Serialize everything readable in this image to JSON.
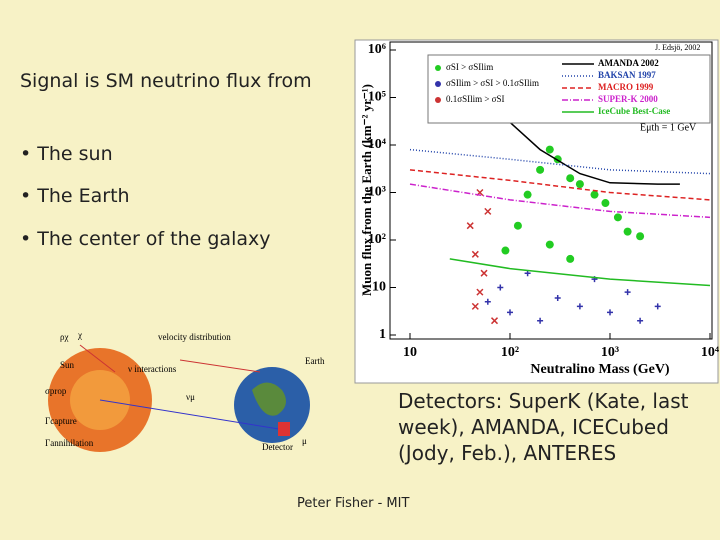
{
  "slide": {
    "heading": "Signal is SM neutrino flux from",
    "bullets": [
      "• The sun",
      "• The Earth",
      "• The center of the galaxy"
    ],
    "detectors": "Detectors: SuperK (Kate, last week), AMANDA, ICECubed (Jody, Feb.), ANTERES",
    "footer": "Peter Fisher - MIT"
  },
  "diagram": {
    "labels": [
      "ρχ",
      "χ",
      "velocity distribution",
      "Sun",
      "ν interactions",
      "Earth",
      "σprop",
      "Γcapture",
      "Γannihilation",
      "νμ",
      "Detector",
      "μ"
    ]
  },
  "chart_data": {
    "type": "line",
    "credit": "J. Edsjö, 2002",
    "xlabel": "Neutralino Mass (GeV)",
    "ylabel": "Muon flux from the Earth (km⁻² yr⁻¹)",
    "annotation": "Eμth = 1 GeV",
    "xscale": "log",
    "yscale": "log",
    "xlim": [
      10,
      10000
    ],
    "ylim": [
      1,
      1000000
    ],
    "xticks": [
      10,
      {
        "value": 100,
        "label": "10²"
      },
      {
        "value": 1000,
        "label": "10³"
      },
      {
        "value": 10000,
        "label": "10⁴"
      }
    ],
    "yticks": [
      1,
      10,
      {
        "value": 100,
        "label": "10²"
      },
      {
        "value": 1000,
        "label": "10³"
      },
      {
        "value": 10000,
        "label": "10⁴"
      },
      {
        "value": 100000,
        "label": "10⁵"
      },
      {
        "value": 1000000,
        "label": "10⁶"
      }
    ],
    "scatter": [
      {
        "name": "σSI > σSIlim",
        "color": "#22cc22",
        "x": [
          90,
          120,
          150,
          200,
          250,
          300,
          400,
          500,
          700,
          900,
          1200,
          1500,
          2000,
          250,
          400
        ],
        "values": [
          60,
          200,
          900,
          3000,
          8000,
          5000,
          2000,
          1500,
          900,
          600,
          300,
          150,
          120,
          80,
          40
        ]
      },
      {
        "name": "σSIlim > σSI > 0.1σSIlim",
        "color": "#3333aa",
        "x": [
          60,
          80,
          100,
          150,
          200,
          300,
          500,
          700,
          1000,
          1500,
          2000,
          3000
        ],
        "values": [
          5,
          10,
          3,
          20,
          2,
          6,
          4,
          15,
          3,
          8,
          2,
          4
        ]
      },
      {
        "name": "0.1σSIlim > σSI",
        "color": "#cc3333",
        "x": [
          40,
          45,
          50,
          55,
          60,
          45,
          50,
          70
        ],
        "values": [
          200,
          50,
          1000,
          20,
          400,
          4,
          8,
          2
        ]
      }
    ],
    "series": [
      {
        "name": "AMANDA 2002",
        "color": "#000000",
        "dash": "",
        "x": [
          60,
          100,
          200,
          500,
          1000,
          3000,
          5000
        ],
        "values": [
          100000,
          30000,
          8000,
          2500,
          1600,
          1500,
          1500
        ]
      },
      {
        "name": "BAKSAN 1997",
        "color": "#2244aa",
        "dash": "1 2",
        "x": [
          10,
          100,
          1000,
          10000
        ],
        "values": [
          8000,
          5000,
          3000,
          2500
        ]
      },
      {
        "name": "MACRO 1999",
        "color": "#dd2222",
        "dash": "5 3",
        "x": [
          10,
          100,
          1000,
          10000
        ],
        "values": [
          3000,
          1800,
          1000,
          700
        ]
      },
      {
        "name": "SUPER-K 2000",
        "color": "#cc22cc",
        "dash": "6 2 1 2",
        "x": [
          10,
          100,
          1000,
          10000
        ],
        "values": [
          1500,
          700,
          400,
          300
        ]
      },
      {
        "name": "IceCube Best-Case",
        "color": "#22bb22",
        "dash": "",
        "x": [
          25,
          100,
          1000,
          10000
        ],
        "values": [
          40,
          25,
          15,
          11
        ]
      }
    ]
  }
}
